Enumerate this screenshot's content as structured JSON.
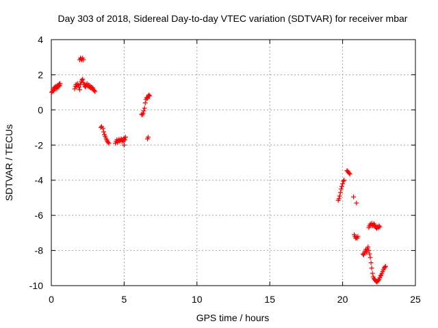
{
  "chart_data": {
    "type": "scatter",
    "title": "Day 303 of 2018, Sidereal Day-to-day VTEC variation (SDTVAR) for receiver mbar",
    "xlabel": "GPS time / hours",
    "ylabel": "SDTVAR / TECUs",
    "xlim": [
      0,
      25
    ],
    "ylim": [
      -10,
      4
    ],
    "xticks": [
      0,
      5,
      10,
      15,
      20,
      25
    ],
    "yticks": [
      4,
      2,
      0,
      -2,
      -4,
      -6,
      -8,
      -10
    ],
    "grid": true,
    "marker": "plus",
    "color": "#ff0000",
    "series": [
      {
        "name": "SDTVAR",
        "points": [
          [
            0.02,
            1.0
          ],
          [
            0.08,
            1.05
          ],
          [
            0.12,
            1.15
          ],
          [
            0.15,
            1.08
          ],
          [
            0.18,
            1.25
          ],
          [
            0.22,
            1.18
          ],
          [
            0.25,
            1.3
          ],
          [
            0.28,
            1.22
          ],
          [
            0.32,
            1.35
          ],
          [
            0.35,
            1.28
          ],
          [
            0.38,
            1.2
          ],
          [
            0.42,
            1.38
          ],
          [
            0.45,
            1.3
          ],
          [
            0.48,
            1.42
          ],
          [
            0.52,
            1.35
          ],
          [
            0.55,
            1.48
          ],
          [
            0.58,
            1.4
          ],
          [
            0.6,
            1.5
          ],
          [
            1.6,
            1.2
          ],
          [
            1.65,
            1.35
          ],
          [
            1.7,
            1.45
          ],
          [
            1.75,
            1.3
          ],
          [
            1.8,
            1.5
          ],
          [
            1.85,
            1.4
          ],
          [
            1.9,
            1.3
          ],
          [
            1.95,
            1.15
          ],
          [
            2.0,
            1.45
          ],
          [
            2.05,
            1.6
          ],
          [
            2.1,
            1.7
          ],
          [
            2.15,
            1.75
          ],
          [
            2.2,
            1.55
          ],
          [
            2.25,
            1.45
          ],
          [
            2.3,
            1.35
          ],
          [
            2.35,
            1.3
          ],
          [
            2.4,
            1.4
          ],
          [
            2.45,
            1.5
          ],
          [
            2.5,
            1.35
          ],
          [
            2.55,
            1.42
          ],
          [
            2.6,
            1.3
          ],
          [
            2.65,
            1.38
          ],
          [
            2.7,
            1.25
          ],
          [
            2.75,
            1.3
          ],
          [
            2.8,
            1.2
          ],
          [
            2.85,
            1.25
          ],
          [
            2.9,
            1.15
          ],
          [
            2.95,
            1.1
          ],
          [
            3.0,
            1.05
          ],
          [
            1.95,
            2.85
          ],
          [
            2.0,
            2.95
          ],
          [
            2.05,
            2.9
          ],
          [
            2.1,
            2.85
          ],
          [
            2.15,
            2.95
          ],
          [
            2.2,
            2.85
          ],
          [
            3.4,
            -1.0
          ],
          [
            3.45,
            -0.95
          ],
          [
            3.55,
            -1.05
          ],
          [
            3.6,
            -1.25
          ],
          [
            3.65,
            -1.4
          ],
          [
            3.7,
            -1.5
          ],
          [
            3.75,
            -1.6
          ],
          [
            3.8,
            -1.7
          ],
          [
            3.85,
            -1.78
          ],
          [
            3.9,
            -1.85
          ],
          [
            3.95,
            -1.9
          ],
          [
            4.4,
            -1.9
          ],
          [
            4.45,
            -1.8
          ],
          [
            4.5,
            -1.7
          ],
          [
            4.55,
            -1.85
          ],
          [
            4.6,
            -1.75
          ],
          [
            4.65,
            -1.68
          ],
          [
            4.7,
            -1.78
          ],
          [
            4.75,
            -1.72
          ],
          [
            4.8,
            -1.65
          ],
          [
            4.85,
            -1.8
          ],
          [
            4.9,
            -1.7
          ],
          [
            4.95,
            -1.75
          ],
          [
            5.0,
            -1.6
          ],
          [
            5.05,
            -1.7
          ],
          [
            5.1,
            -1.55
          ],
          [
            5.0,
            -2.0
          ],
          [
            6.2,
            -0.25
          ],
          [
            6.25,
            -0.28
          ],
          [
            6.3,
            -0.2
          ],
          [
            6.35,
            -0.05
          ],
          [
            6.4,
            0.1
          ],
          [
            6.45,
            0.4
          ],
          [
            6.5,
            0.6
          ],
          [
            6.55,
            0.7
          ],
          [
            6.6,
            0.65
          ],
          [
            6.65,
            0.78
          ],
          [
            6.7,
            0.85
          ],
          [
            6.75,
            0.8
          ],
          [
            6.6,
            -1.65
          ],
          [
            6.65,
            -1.55
          ],
          [
            19.7,
            -5.15
          ],
          [
            19.75,
            -5.05
          ],
          [
            19.8,
            -4.9
          ],
          [
            19.85,
            -4.7
          ],
          [
            19.9,
            -4.5
          ],
          [
            19.95,
            -4.35
          ],
          [
            20.0,
            -4.2
          ],
          [
            20.05,
            -4.05
          ],
          [
            20.1,
            -4.0
          ],
          [
            20.3,
            -3.45
          ],
          [
            20.35,
            -3.5
          ],
          [
            20.4,
            -3.55
          ],
          [
            20.45,
            -3.6
          ],
          [
            20.5,
            -3.65
          ],
          [
            20.75,
            -4.95
          ],
          [
            20.95,
            -5.3
          ],
          [
            20.8,
            -7.1
          ],
          [
            20.85,
            -7.2
          ],
          [
            20.9,
            -7.3
          ],
          [
            20.95,
            -7.25
          ],
          [
            21.0,
            -7.3
          ],
          [
            21.05,
            -7.2
          ],
          [
            21.4,
            -8.2
          ],
          [
            21.45,
            -8.25
          ],
          [
            21.5,
            -8.15
          ],
          [
            21.55,
            -8.05
          ],
          [
            21.6,
            -7.95
          ],
          [
            21.65,
            -8.1
          ],
          [
            21.7,
            -7.9
          ],
          [
            21.75,
            -7.8
          ],
          [
            21.8,
            -8.0
          ],
          [
            21.85,
            -8.2
          ],
          [
            21.9,
            -8.4
          ],
          [
            21.95,
            -8.7
          ],
          [
            22.0,
            -9.0
          ],
          [
            22.05,
            -9.3
          ],
          [
            22.1,
            -9.5
          ],
          [
            22.15,
            -9.6
          ],
          [
            22.2,
            -9.65
          ],
          [
            22.25,
            -9.7
          ],
          [
            22.3,
            -9.75
          ],
          [
            22.35,
            -9.8
          ],
          [
            22.4,
            -9.75
          ],
          [
            22.45,
            -9.7
          ],
          [
            22.5,
            -9.65
          ],
          [
            22.55,
            -9.55
          ],
          [
            22.6,
            -9.45
          ],
          [
            22.65,
            -9.4
          ],
          [
            22.7,
            -9.3
          ],
          [
            22.75,
            -9.2
          ],
          [
            22.8,
            -9.1
          ],
          [
            22.85,
            -9.0
          ],
          [
            22.9,
            -8.95
          ],
          [
            22.95,
            -8.9
          ],
          [
            21.8,
            -6.7
          ],
          [
            21.85,
            -6.6
          ],
          [
            21.9,
            -6.5
          ],
          [
            21.95,
            -6.55
          ],
          [
            22.0,
            -6.45
          ],
          [
            22.05,
            -6.6
          ],
          [
            22.1,
            -6.55
          ],
          [
            22.15,
            -6.48
          ],
          [
            22.2,
            -6.55
          ],
          [
            22.25,
            -6.65
          ],
          [
            22.3,
            -6.7
          ],
          [
            22.35,
            -6.75
          ],
          [
            22.4,
            -6.65
          ],
          [
            22.45,
            -6.7
          ],
          [
            22.5,
            -6.6
          ],
          [
            22.55,
            -6.65
          ]
        ]
      }
    ]
  }
}
